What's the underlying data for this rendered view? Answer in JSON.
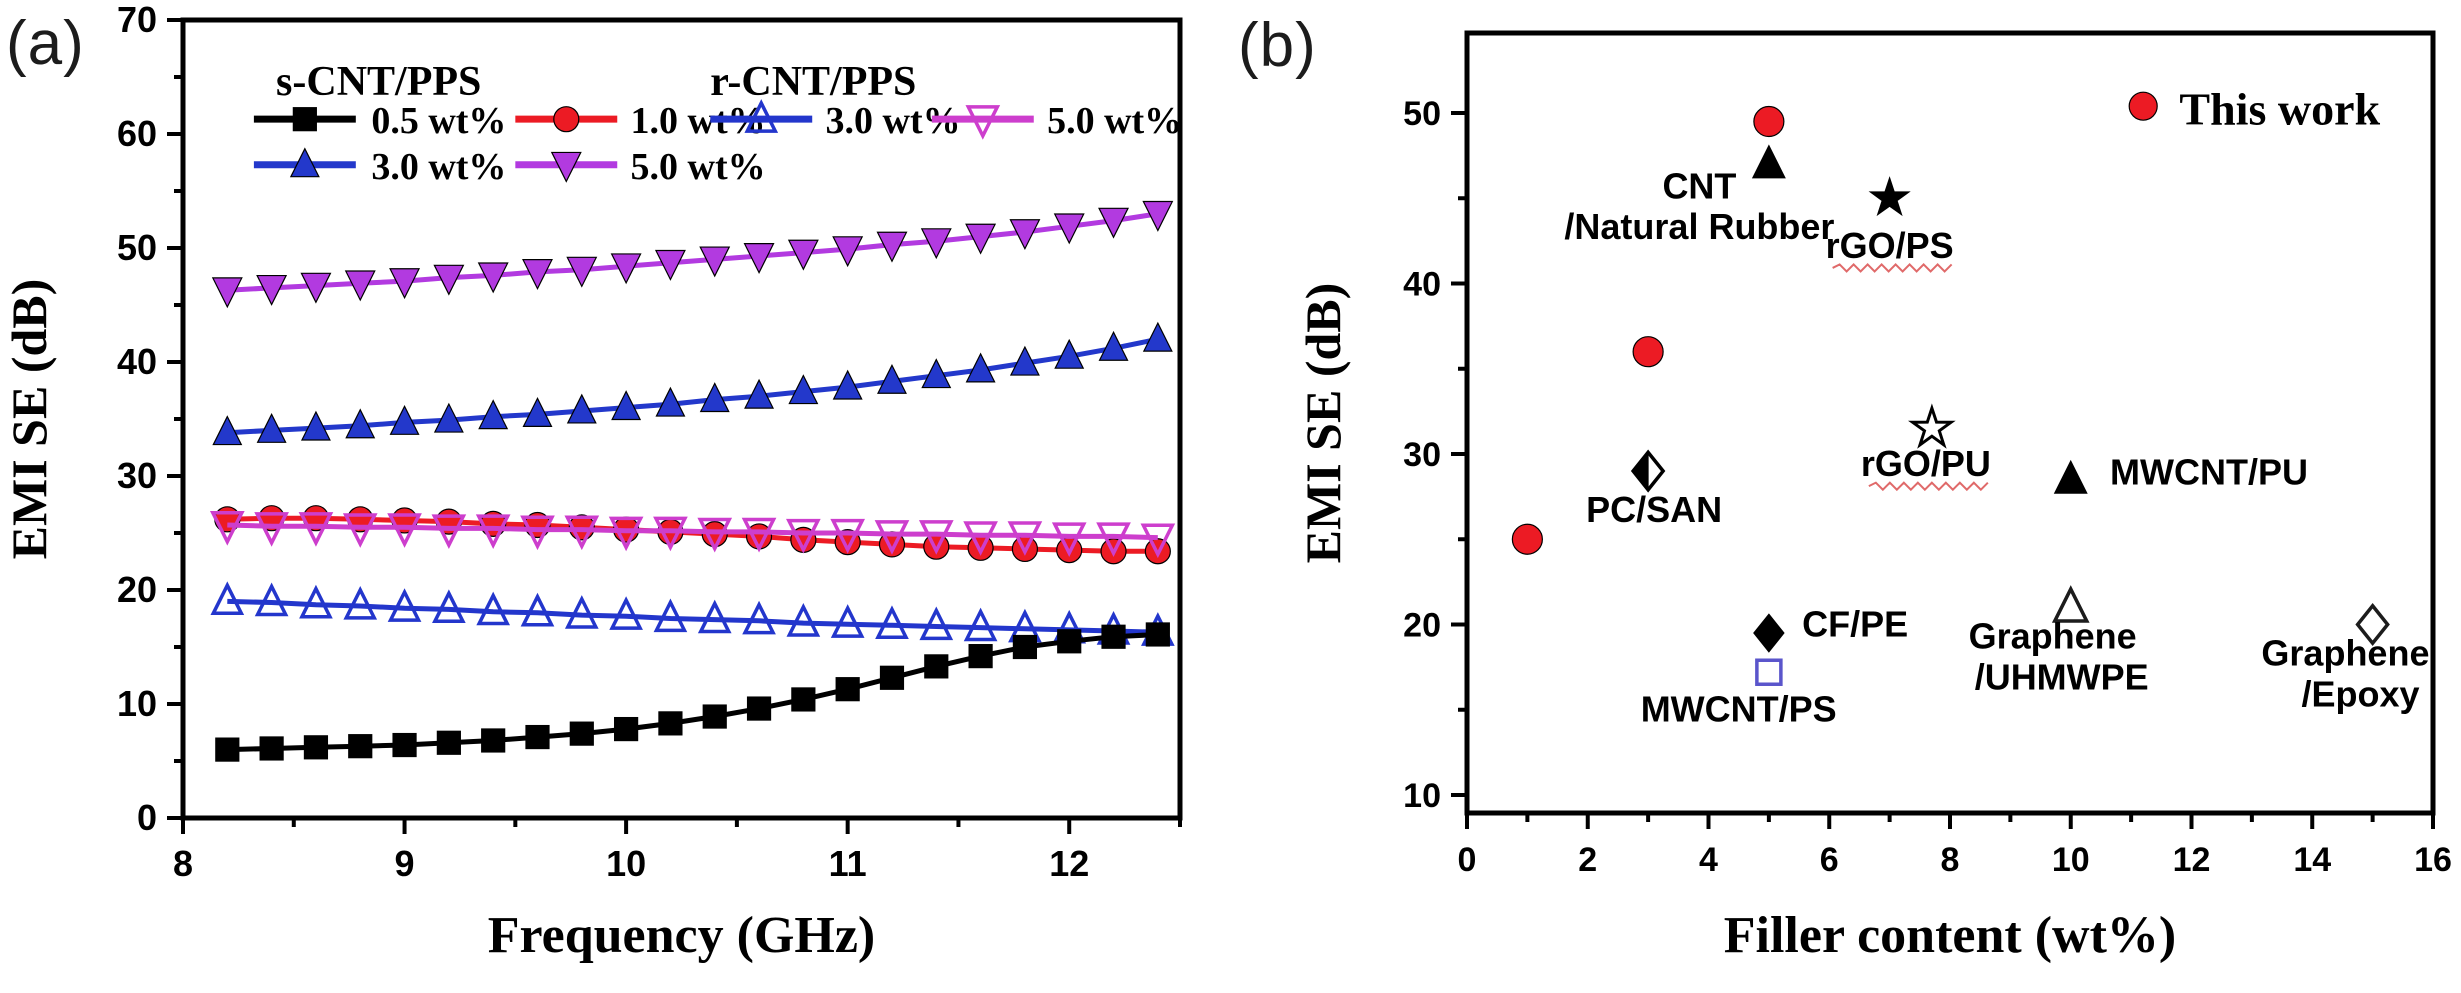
{
  "figure": {
    "panel_a_label": "(a)",
    "panel_b_label": "(b)",
    "background": "#ffffff",
    "frame_color": "#000000"
  },
  "chart_data": [
    {
      "id": "panel_a",
      "type": "line",
      "xlabel": "Frequency (GHz)",
      "ylabel": "EMI SE (dB)",
      "xlim": [
        8,
        12.5
      ],
      "ylim": [
        0,
        70
      ],
      "xticks_major": [
        8,
        9,
        10,
        11,
        12
      ],
      "xticks_minor": [
        8.5,
        9.5,
        10.5,
        11.5,
        12.5
      ],
      "yticks_major": [
        0,
        10,
        20,
        30,
        40,
        50,
        60,
        70
      ],
      "yticks_minor": [
        5,
        15,
        25,
        35,
        45,
        55,
        65
      ],
      "grid": false,
      "legend": {
        "position": "top-inside",
        "groups": [
          {
            "label": "s-CNT/PPS",
            "entries": [
              "0.5 wt%",
              "1.0 wt%",
              "3.0 wt%",
              "5.0 wt%"
            ]
          },
          {
            "label": "r-CNT/PPS",
            "entries": [
              "3.0 wt%",
              "5.0 wt%"
            ]
          }
        ]
      },
      "x": [
        8.2,
        8.4,
        8.6,
        8.8,
        9.0,
        9.2,
        9.4,
        9.6,
        9.8,
        10.0,
        10.2,
        10.4,
        10.6,
        10.8,
        11.0,
        11.2,
        11.4,
        11.6,
        11.8,
        12.0,
        12.2,
        12.4
      ],
      "series": [
        {
          "name": "s-CNT/PPS 0.5 wt%",
          "marker": "square",
          "fill": "filled",
          "color": "#000000",
          "values": [
            6.0,
            6.1,
            6.2,
            6.3,
            6.4,
            6.6,
            6.8,
            7.1,
            7.4,
            7.8,
            8.3,
            8.9,
            9.6,
            10.4,
            11.3,
            12.3,
            13.3,
            14.2,
            15.0,
            15.5,
            15.9,
            16.1
          ]
        },
        {
          "name": "s-CNT/PPS 1.0 wt%",
          "marker": "circle",
          "fill": "filled",
          "color": "#ec1b24",
          "values": [
            26.2,
            26.3,
            26.3,
            26.2,
            26.1,
            26.0,
            25.8,
            25.7,
            25.5,
            25.3,
            25.1,
            24.9,
            24.7,
            24.4,
            24.2,
            24.0,
            23.8,
            23.7,
            23.6,
            23.5,
            23.4,
            23.4
          ]
        },
        {
          "name": "s-CNT/PPS 3.0 wt%",
          "marker": "triangle-up",
          "fill": "filled",
          "color": "#2338cb",
          "values": [
            33.8,
            34.0,
            34.2,
            34.4,
            34.7,
            34.9,
            35.2,
            35.4,
            35.7,
            36.0,
            36.3,
            36.7,
            37.0,
            37.4,
            37.8,
            38.3,
            38.8,
            39.3,
            39.9,
            40.5,
            41.2,
            42.0
          ]
        },
        {
          "name": "s-CNT/PPS 5.0 wt%",
          "marker": "triangle-down",
          "fill": "filled",
          "color": "#b23ae0",
          "values": [
            46.3,
            46.5,
            46.7,
            46.9,
            47.1,
            47.4,
            47.6,
            47.9,
            48.1,
            48.4,
            48.7,
            49.0,
            49.3,
            49.6,
            49.9,
            50.3,
            50.6,
            51.0,
            51.4,
            51.9,
            52.4,
            53.0
          ]
        },
        {
          "name": "r-CNT/PPS 3.0 wt%",
          "marker": "triangle-up",
          "fill": "open",
          "color": "#2336cc",
          "values": [
            19.0,
            18.9,
            18.7,
            18.6,
            18.4,
            18.3,
            18.1,
            18.0,
            17.8,
            17.7,
            17.5,
            17.4,
            17.3,
            17.1,
            17.0,
            16.9,
            16.8,
            16.7,
            16.6,
            16.5,
            16.4,
            16.3
          ]
        },
        {
          "name": "r-CNT/PPS 5.0 wt%",
          "marker": "triangle-down",
          "fill": "open",
          "color": "#cd3ecd",
          "values": [
            25.7,
            25.6,
            25.6,
            25.5,
            25.5,
            25.4,
            25.4,
            25.3,
            25.3,
            25.2,
            25.2,
            25.1,
            25.1,
            25.0,
            25.0,
            24.9,
            24.9,
            24.8,
            24.8,
            24.7,
            24.7,
            24.6
          ]
        }
      ]
    },
    {
      "id": "panel_b",
      "type": "scatter",
      "xlabel": "Filler content (wt%)",
      "ylabel": "EMI SE (dB)",
      "xlim": [
        0,
        16
      ],
      "ylim": [
        9,
        54.7
      ],
      "xticks_major": [
        0,
        2,
        4,
        6,
        8,
        10,
        12,
        14,
        16
      ],
      "xticks_minor": [
        1,
        3,
        5,
        7,
        9,
        11,
        13,
        15
      ],
      "yticks_major": [
        10,
        20,
        30,
        40,
        50
      ],
      "yticks_minor": [
        15,
        25,
        35,
        45
      ],
      "grid": false,
      "legend": {
        "label": "This work",
        "marker": "circle",
        "color": "#ec1b24",
        "x": 11.2,
        "y": 50.4,
        "label_x": 11.8,
        "label_y": 50.2
      },
      "points": [
        {
          "name": "this-work-1",
          "series": "This work",
          "marker": "circle",
          "fill": "filled",
          "color": "#ec1b24",
          "x": 1,
          "y": 25
        },
        {
          "name": "this-work-2",
          "series": "This work",
          "marker": "circle",
          "fill": "filled",
          "color": "#ec1b24",
          "x": 3,
          "y": 36
        },
        {
          "name": "this-work-3",
          "series": "This work",
          "marker": "circle",
          "fill": "filled",
          "color": "#ec1b24",
          "x": 5,
          "y": 49.5
        },
        {
          "name": "cnt-natural-rubber",
          "marker": "triangle-up",
          "fill": "filled",
          "color": "#000000",
          "x": 5,
          "y": 47,
          "label_lines": [
            {
              "text": "CNT",
              "x": 3.85,
              "y": 45.0,
              "anchor": "middle"
            },
            {
              "text": "/Natural Rubber",
              "x": 3.85,
              "y": 42.6,
              "anchor": "middle"
            }
          ]
        },
        {
          "name": "rgo-ps",
          "marker": "star",
          "fill": "filled",
          "color": "#000000",
          "x": 7,
          "y": 45,
          "label_lines": [
            {
              "text": "rGO/PS",
              "x": 7.0,
              "y": 41.5,
              "anchor": "middle",
              "squiggle": true
            }
          ]
        },
        {
          "name": "rgo-pu",
          "marker": "star",
          "fill": "open",
          "color": "#000000",
          "x": 7.7,
          "y": 31.5,
          "label_lines": [
            {
              "text": "rGO/PU",
              "x": 7.6,
              "y": 28.7,
              "anchor": "middle",
              "squiggle": true
            }
          ]
        },
        {
          "name": "pc-san",
          "marker": "diamond-half",
          "fill": "half",
          "color": "#000000",
          "x": 3,
          "y": 29,
          "label_lines": [
            {
              "text": "PC/SAN",
              "x": 3.1,
              "y": 26.0,
              "anchor": "middle"
            }
          ]
        },
        {
          "name": "mwcnt-pu",
          "marker": "triangle-up",
          "fill": "filled",
          "color": "#000000",
          "x": 10,
          "y": 28.5,
          "label_lines": [
            {
              "text": "MWCNT/PU",
              "x": 10.65,
              "y": 28.2,
              "anchor": "start"
            }
          ]
        },
        {
          "name": "cf-pe",
          "marker": "diamond",
          "fill": "filled",
          "color": "#000000",
          "x": 5,
          "y": 19.5,
          "label_lines": [
            {
              "text": "CF/PE",
              "x": 5.55,
              "y": 19.3,
              "anchor": "start"
            }
          ]
        },
        {
          "name": "mwcnt-ps",
          "marker": "square",
          "fill": "open",
          "color": "#5a55cb",
          "x": 5,
          "y": 17.2,
          "label_lines": [
            {
              "text": "MWCNT/PS",
              "x": 4.5,
              "y": 14.3,
              "anchor": "middle"
            }
          ]
        },
        {
          "name": "graphene-uhmwpe",
          "marker": "triangle-up",
          "fill": "open",
          "color": "#1c1c1c",
          "x": 10,
          "y": 21,
          "label_lines": [
            {
              "text": "Graphene",
              "x": 9.7,
              "y": 18.6,
              "anchor": "middle"
            },
            {
              "text": "/UHMWPE",
              "x": 9.85,
              "y": 16.2,
              "anchor": "middle"
            }
          ]
        },
        {
          "name": "graphene-epoxy",
          "marker": "diamond",
          "fill": "open",
          "color": "#1c1c1c",
          "x": 15,
          "y": 20,
          "label_lines": [
            {
              "text": "Graphene",
              "x": 14.55,
              "y": 17.6,
              "anchor": "middle"
            },
            {
              "text": "/Epoxy",
              "x": 14.8,
              "y": 15.2,
              "anchor": "middle"
            }
          ]
        }
      ]
    }
  ]
}
